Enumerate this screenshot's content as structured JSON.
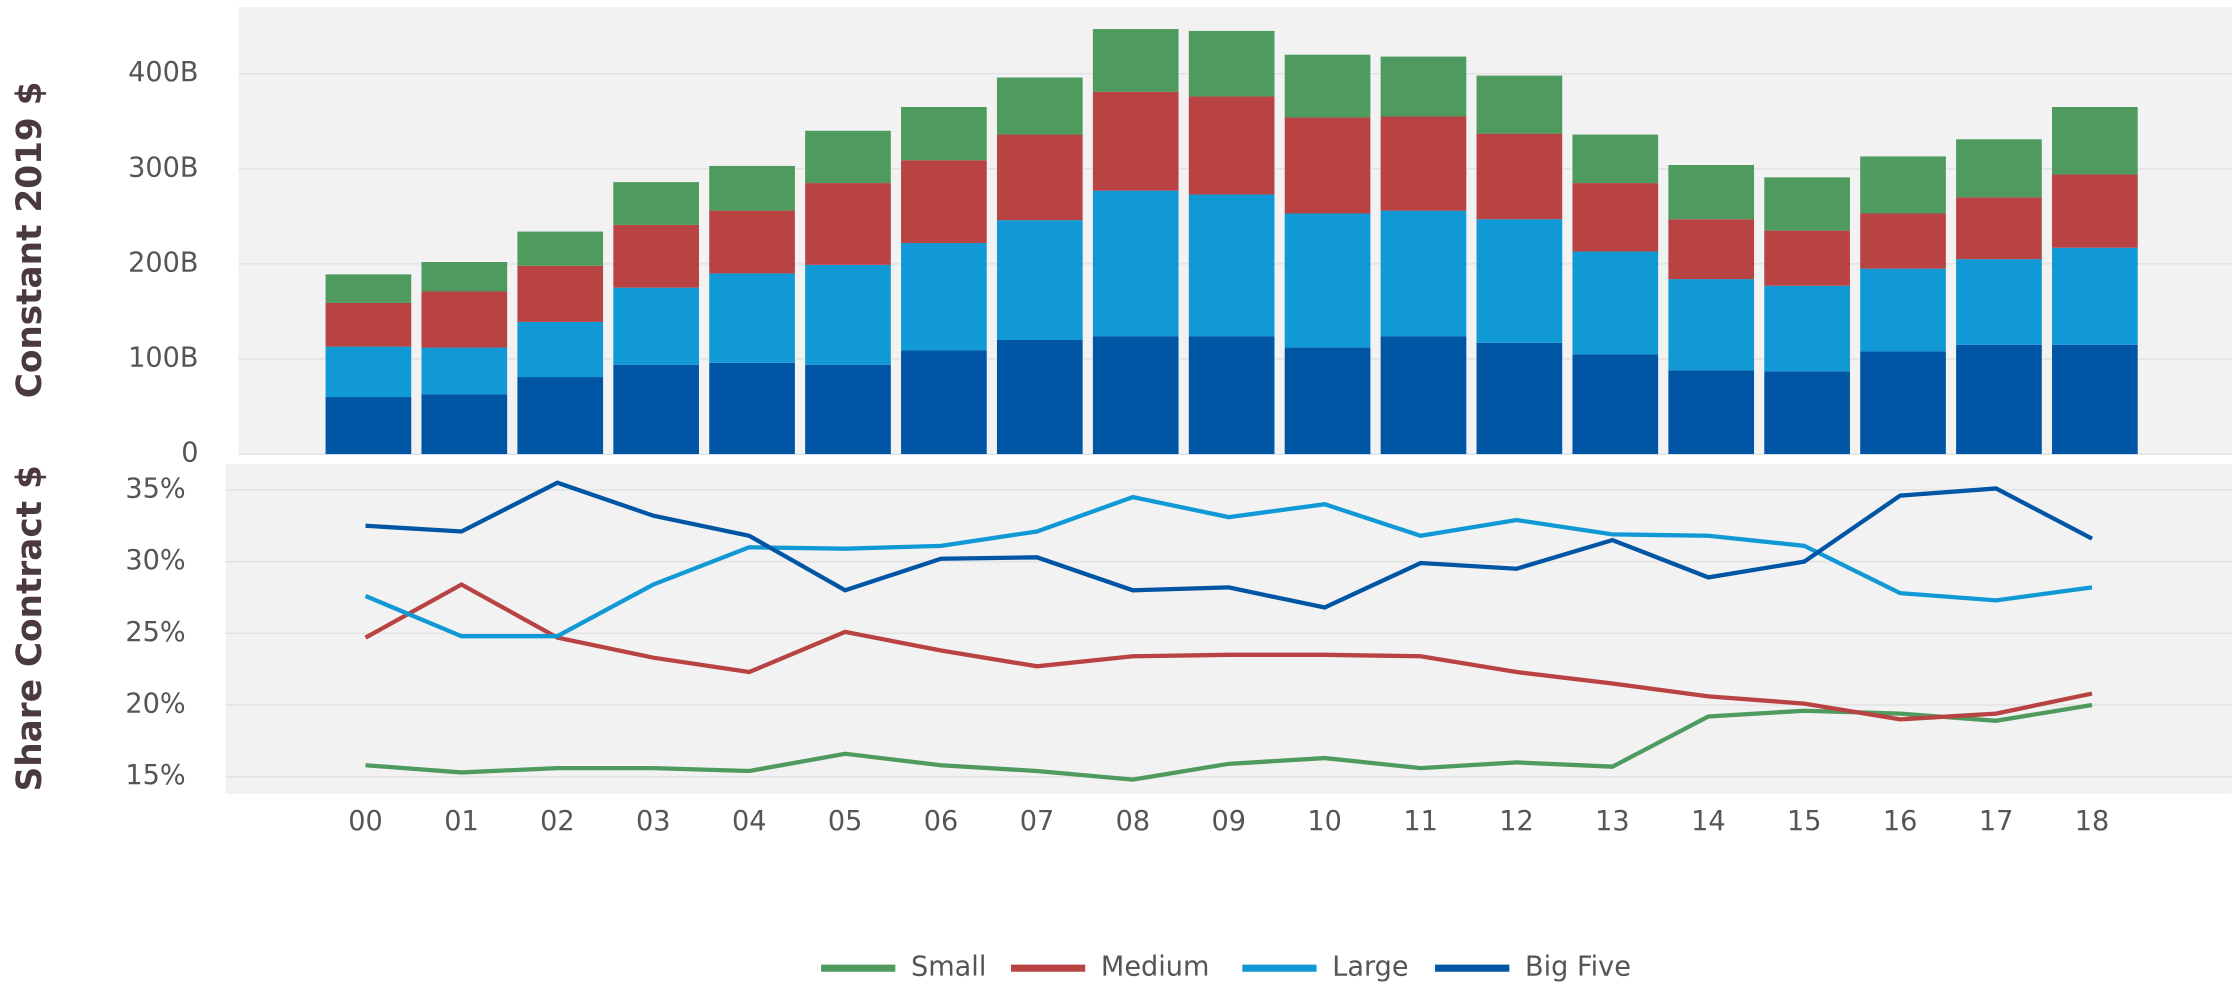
{
  "chart_data": [
    {
      "type": "bar",
      "stacked": true,
      "ylabel": "Constant 2019 $",
      "ylim": [
        0,
        470
      ],
      "yticks": [
        0,
        {
          "value": 100,
          "label": "100B"
        },
        {
          "value": 200,
          "label": "200B"
        },
        {
          "value": 300,
          "label": "300B"
        },
        {
          "value": 400,
          "label": "400B"
        }
      ],
      "grid": true,
      "legend": "bottom",
      "series": [
        {
          "name": "Small",
          "color": "#4e9a5f",
          "values": [
            30,
            31,
            36,
            45,
            47,
            55,
            56,
            60,
            66,
            69,
            66,
            63,
            61,
            51,
            57,
            56,
            60,
            61,
            71
          ]
        },
        {
          "name": "Medium",
          "color": "#b94343",
          "values": [
            46,
            59,
            59,
            66,
            66,
            86,
            87,
            90,
            104,
            103,
            101,
            99,
            90,
            72,
            63,
            58,
            58,
            65,
            77
          ]
        },
        {
          "name": "Large",
          "color": "#1199d6",
          "values": [
            53,
            49,
            58,
            81,
            94,
            105,
            113,
            126,
            153,
            149,
            141,
            132,
            130,
            108,
            96,
            90,
            87,
            90,
            102
          ]
        },
        {
          "name": "Big Five",
          "color": "#0055a5",
          "values": [
            60,
            63,
            81,
            94,
            96,
            94,
            109,
            120,
            124,
            124,
            112,
            124,
            117,
            105,
            88,
            87,
            108,
            115,
            115
          ]
        }
      ]
    },
    {
      "type": "line",
      "ylabel": "Share Contract $",
      "categories": [
        "00",
        "01",
        "02",
        "03",
        "04",
        "05",
        "06",
        "07",
        "08",
        "09",
        "10",
        "11",
        "12",
        "13",
        "14",
        "15",
        "16",
        "17",
        "18"
      ],
      "ylim": [
        13.8,
        36.8
      ],
      "yticks": [
        {
          "value": 15,
          "label": "15%"
        },
        {
          "value": 20,
          "label": "20%"
        },
        {
          "value": 25,
          "label": "25%"
        },
        {
          "value": 30,
          "label": "30%"
        },
        {
          "value": 35,
          "label": "35%"
        }
      ],
      "grid": true,
      "series": [
        {
          "color": "#4e9a5f",
          "values": [
            15.8,
            15.3,
            15.6,
            15.6,
            15.4,
            16.6,
            15.8,
            15.4,
            14.8,
            15.9,
            16.3,
            15.6,
            16.0,
            15.7,
            19.2,
            19.6,
            19.4,
            18.9,
            20.0
          ]
        },
        {
          "color": "#b94343",
          "values": [
            24.7,
            28.4,
            24.7,
            23.3,
            22.3,
            25.1,
            23.8,
            22.7,
            23.4,
            23.5,
            23.5,
            23.4,
            22.3,
            21.5,
            20.6,
            20.1,
            19.0,
            19.4,
            20.8
          ]
        },
        {
          "color": "#1199d6",
          "values": [
            27.6,
            24.8,
            24.8,
            28.4,
            31.0,
            30.9,
            31.1,
            32.1,
            34.5,
            33.1,
            34.0,
            31.8,
            32.9,
            31.9,
            31.8,
            31.1,
            27.8,
            27.3,
            28.2
          ]
        },
        {
          "color": "#0055a5",
          "values": [
            32.5,
            32.1,
            35.5,
            33.2,
            31.8,
            28.0,
            30.2,
            30.3,
            28.0,
            28.2,
            26.8,
            29.9,
            29.5,
            31.5,
            28.9,
            30.0,
            34.6,
            35.1,
            31.6
          ]
        }
      ]
    }
  ]
}
